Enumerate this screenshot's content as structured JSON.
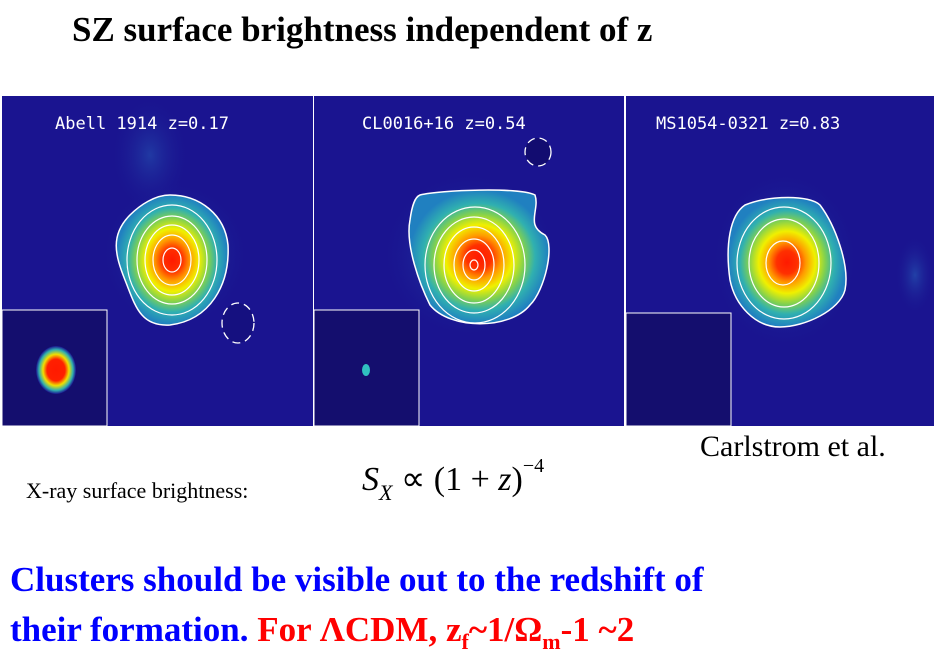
{
  "title": "SZ surface brightness independent of z",
  "panels": [
    {
      "label": "Abell 1914 z=0.17"
    },
    {
      "label": "CL0016+16 z=0.54"
    },
    {
      "label": "MS1054-0321 z=0.83"
    }
  ],
  "credit": "Carlstrom et al.",
  "xray_label": "X-ray surface brightness:",
  "formula": {
    "s": "S",
    "sub": "X",
    "rel": " ∝ (1 + ",
    "z": "z",
    "close": ")",
    "exp": "−4"
  },
  "conclusion": {
    "line1": "Clusters should be  visible out to the redshift of",
    "line2_blue": "their formation. ",
    "line2_red_a": "For ΛCDM, z",
    "sub_f": "f",
    "line2_red_b": "~1/Ω",
    "sub_m": "m",
    "line2_red_c": "-1 ~2"
  },
  "colors": {
    "background_map": "#1a1490",
    "blue_text": "#0000ff",
    "red_text": "#ff0000"
  }
}
